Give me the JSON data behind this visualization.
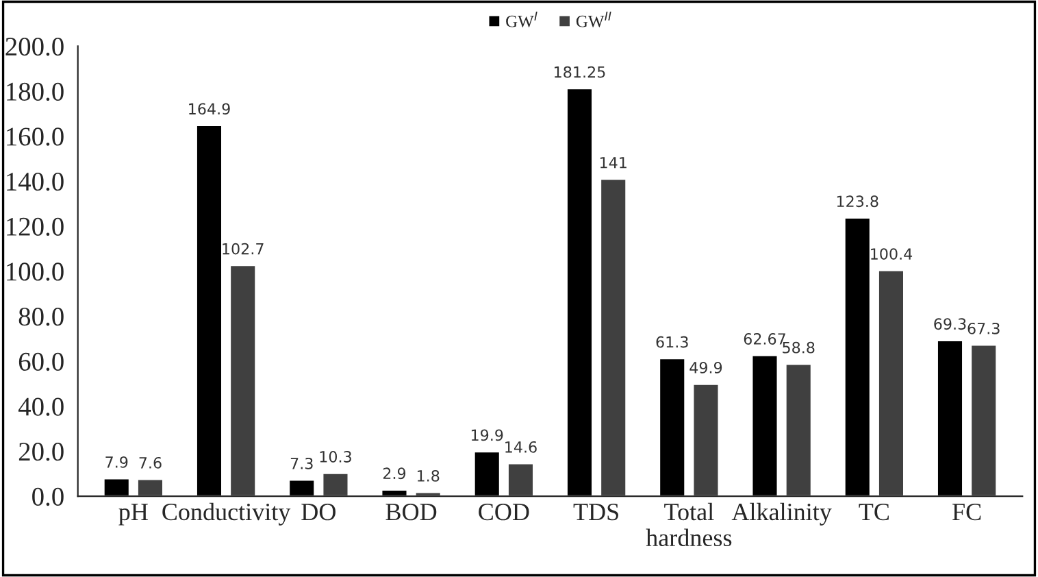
{
  "chart_data": {
    "type": "bar",
    "categories": [
      "pH",
      "Conductivity",
      "DO",
      "BOD",
      "COD",
      "TDS",
      "Total\nhardness",
      "Alkalinity",
      "TC",
      "FC"
    ],
    "series": [
      {
        "name": "GW$^{I}$",
        "color": "#000000",
        "values": [
          7.9,
          164.9,
          7.3,
          2.9,
          19.9,
          181.25,
          61.3,
          62.67,
          123.8,
          69.3
        ]
      },
      {
        "name": "GW$^{II}$",
        "color": "#404040",
        "values": [
          7.6,
          102.7,
          10.3,
          1.8,
          14.6,
          141,
          49.9,
          58.8,
          100.4,
          67.3
        ]
      }
    ],
    "ylim": [
      0,
      200
    ],
    "yticks": [
      {
        "value": 0,
        "label": "0.0"
      },
      {
        "value": 20,
        "label": "20.0"
      },
      {
        "value": 40,
        "label": "40.0"
      },
      {
        "value": 60,
        "label": "60.0"
      },
      {
        "value": 80,
        "label": "80.0"
      },
      {
        "value": 100,
        "label": "100.0"
      },
      {
        "value": 120,
        "label": "120.0"
      },
      {
        "value": 140,
        "label": "140.0"
      },
      {
        "value": 160,
        "label": "160.0"
      },
      {
        "value": 180,
        "label": "180.0"
      },
      {
        "value": 200,
        "label": "200.0"
      }
    ],
    "data_labels": true,
    "grid": false,
    "legend": "top"
  }
}
